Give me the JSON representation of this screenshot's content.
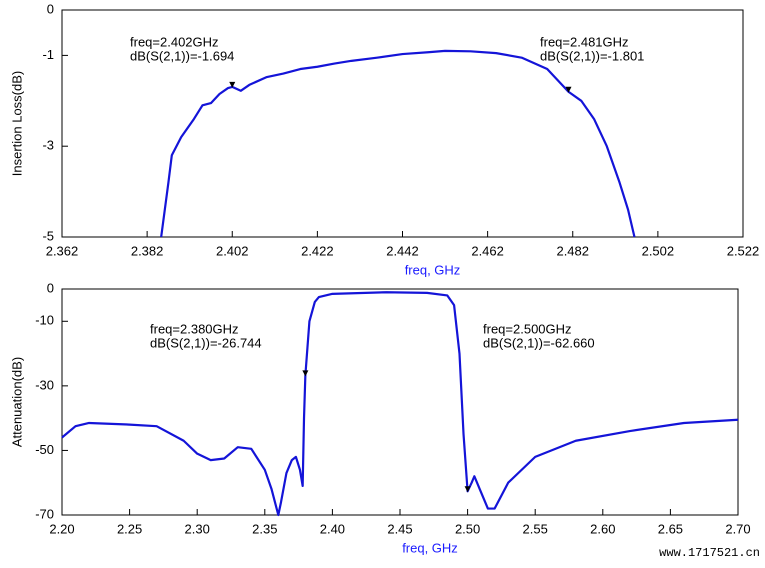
{
  "chart_data": [
    {
      "type": "line",
      "ylabel": "Insertion Loss(dB)",
      "xlabel": "freq, GHz",
      "xlim": [
        2.362,
        2.522
      ],
      "xticks": [
        2.362,
        2.382,
        2.402,
        2.422,
        2.442,
        2.462,
        2.482,
        2.502,
        2.522
      ],
      "ylim": [
        -5,
        0
      ],
      "yticks": [
        0,
        -1,
        -3,
        -5
      ],
      "grid": false,
      "series": [
        {
          "name": "dB(S(2,1))",
          "color": "#1414d8",
          "x": [
            2.3853,
            2.387,
            2.3878,
            2.39,
            2.393,
            2.395,
            2.397,
            2.399,
            2.401,
            2.402,
            2.404,
            2.406,
            2.41,
            2.414,
            2.418,
            2.422,
            2.426,
            2.43,
            2.436,
            2.442,
            2.448,
            2.452,
            2.458,
            2.464,
            2.47,
            2.476,
            2.481,
            2.484,
            2.487,
            2.49,
            2.493,
            2.495,
            2.4965
          ],
          "values": [
            -5,
            -3.8,
            -3.2,
            -2.8,
            -2.4,
            -2.1,
            -2.05,
            -1.85,
            -1.72,
            -1.694,
            -1.78,
            -1.65,
            -1.48,
            -1.4,
            -1.3,
            -1.25,
            -1.18,
            -1.12,
            -1.05,
            -0.97,
            -0.93,
            -0.9,
            -0.91,
            -0.95,
            -1.05,
            -1.3,
            -1.801,
            -2.0,
            -2.4,
            -3.0,
            -3.8,
            -4.4,
            -5
          ]
        }
      ],
      "annotations": [
        {
          "x": 2.402,
          "y": -1.694,
          "lines": [
            "freq=2.402GHz",
            "dB(S(2,1))=-1.694"
          ]
        },
        {
          "x": 2.481,
          "y": -1.801,
          "lines": [
            "freq=2.481GHz",
            "dB(S(2,1))=-1.801"
          ]
        }
      ]
    },
    {
      "type": "line",
      "ylabel": "Attenuation(dB)",
      "xlabel": "freq, GHz",
      "xlim": [
        2.2,
        2.7
      ],
      "xticks": [
        {
          "value": 2.2,
          "label": "2.20"
        },
        2.25,
        {
          "value": 2.3,
          "label": "2.30"
        },
        2.35,
        {
          "value": 2.4,
          "label": "2.40"
        },
        2.45,
        {
          "value": 2.5,
          "label": "2.50"
        },
        2.55,
        {
          "value": 2.6,
          "label": "2.60"
        },
        2.65,
        {
          "value": 2.7,
          "label": "2.70"
        }
      ],
      "ylim": [
        -70,
        0
      ],
      "yticks": [
        0,
        -10,
        -30,
        -50,
        -70
      ],
      "grid": false,
      "series": [
        {
          "name": "dB(S(2,1))",
          "color": "#1414d8",
          "x": [
            2.2,
            2.21,
            2.22,
            2.25,
            2.27,
            2.29,
            2.3,
            2.31,
            2.32,
            2.33,
            2.34,
            2.35,
            2.355,
            2.36,
            2.362,
            2.366,
            2.37,
            2.373,
            2.376,
            2.378,
            2.379,
            2.38,
            2.383,
            2.387,
            2.39,
            2.4,
            2.44,
            2.47,
            2.485,
            2.49,
            2.494,
            2.497,
            2.5,
            2.503,
            2.505,
            2.51,
            2.515,
            2.52,
            2.53,
            2.55,
            2.58,
            2.62,
            2.66,
            2.7
          ],
          "values": [
            -46,
            -42.5,
            -41.5,
            -42,
            -42.5,
            -47,
            -51,
            -53,
            -52.5,
            -49,
            -49.5,
            -56,
            -62,
            -70,
            -66,
            -57,
            -53,
            -52,
            -56,
            -61,
            -40,
            -26.744,
            -10,
            -4,
            -2.5,
            -1.5,
            -1,
            -1.2,
            -2,
            -5,
            -20,
            -45,
            -62.66,
            -60,
            -58,
            -63,
            -68,
            -68,
            -60,
            -52,
            -47,
            -44,
            -41.5,
            -40.5
          ]
        }
      ],
      "annotations": [
        {
          "x": 2.38,
          "y": -26.744,
          "lines": [
            "freq=2.380GHz",
            "dB(S(2,1))=-26.744"
          ]
        },
        {
          "x": 2.5,
          "y": -62.66,
          "lines": [
            "freq=2.500GHz",
            "dB(S(2,1))=-62.660"
          ]
        }
      ]
    }
  ],
  "watermark": "www.1717521.cn"
}
